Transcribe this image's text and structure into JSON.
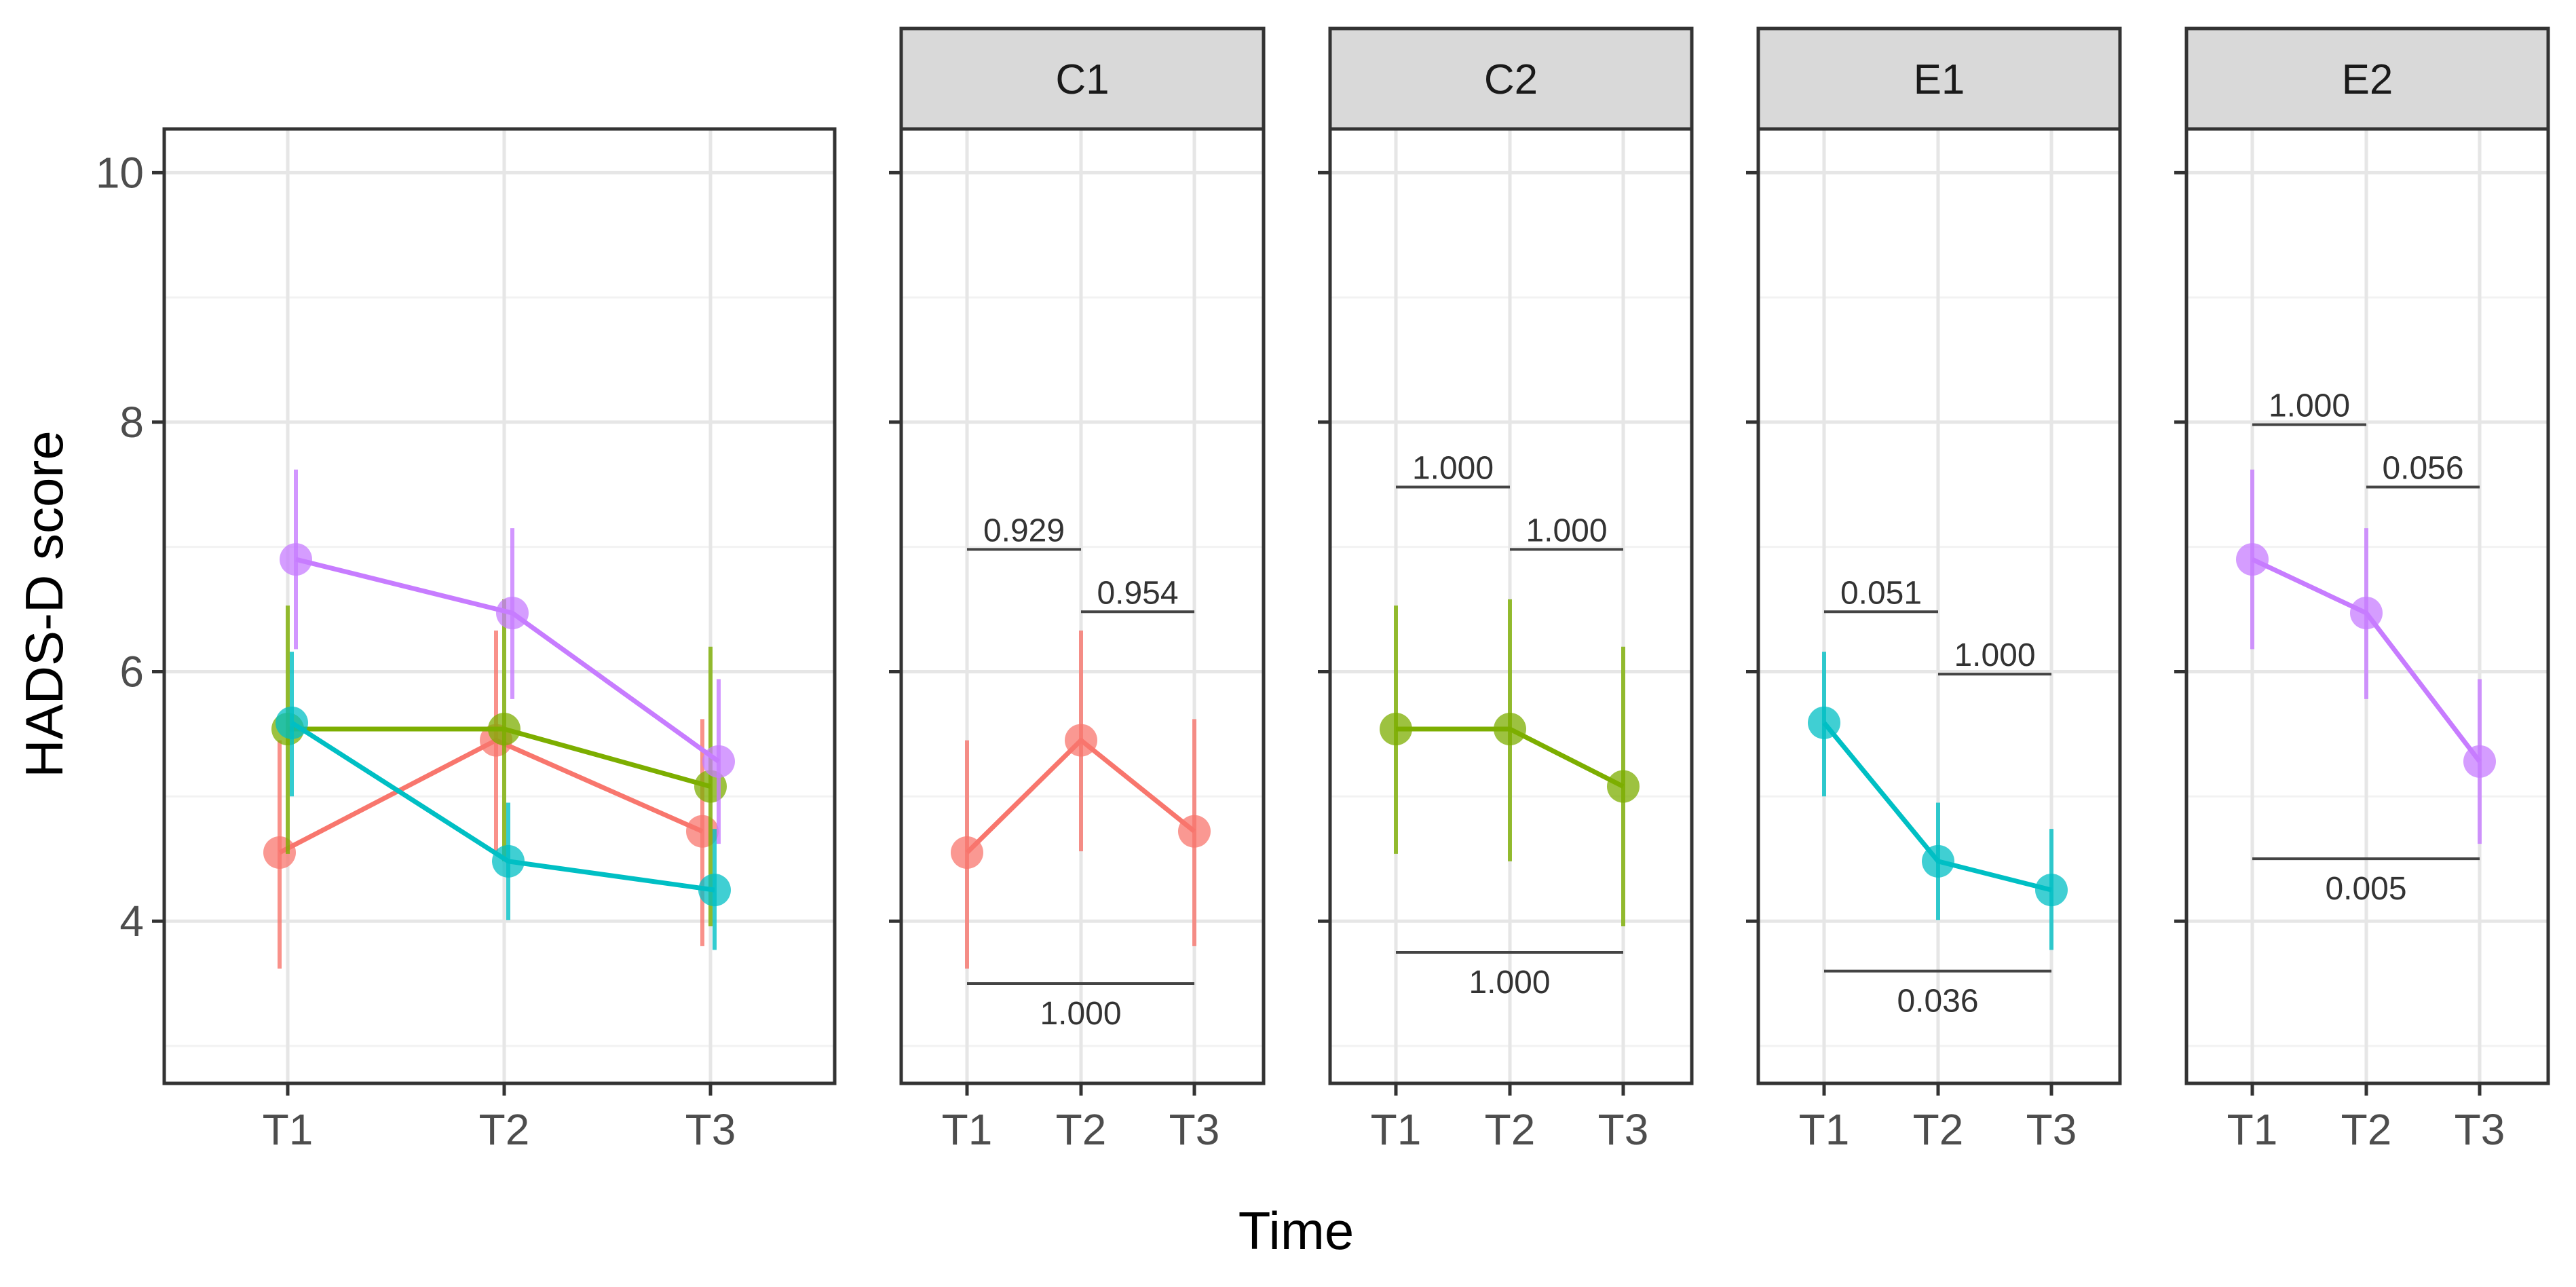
{
  "chart_data": {
    "type": "line",
    "ylabel": "HADS-D score",
    "xlabel": "Time",
    "ylim": [
      2.7,
      10.35
    ],
    "yticks": [
      4,
      6,
      8,
      10
    ],
    "x": [
      "T1",
      "T2",
      "T3"
    ],
    "series": [
      {
        "name": "C1",
        "color": "#F8766D",
        "values": [
          4.55,
          5.45,
          4.72
        ],
        "lower": [
          3.62,
          4.56,
          3.8
        ],
        "upper": [
          5.45,
          6.33,
          5.62
        ]
      },
      {
        "name": "C2",
        "color": "#7CAE00",
        "values": [
          5.54,
          5.54,
          5.08
        ],
        "lower": [
          4.54,
          4.48,
          3.96
        ],
        "upper": [
          6.53,
          6.58,
          6.2
        ]
      },
      {
        "name": "E1",
        "color": "#00BFC4",
        "values": [
          5.59,
          4.48,
          4.25
        ],
        "lower": [
          5.0,
          4.01,
          3.77
        ],
        "upper": [
          6.16,
          4.95,
          4.74
        ]
      },
      {
        "name": "E2",
        "color": "#C77CFF",
        "values": [
          6.9,
          6.47,
          5.28
        ],
        "lower": [
          6.18,
          5.78,
          4.62
        ],
        "upper": [
          7.62,
          7.15,
          5.94
        ]
      }
    ],
    "comparisons": {
      "C1": [
        {
          "from": "T1",
          "to": "T2",
          "label": "0.929",
          "y": 6.98,
          "side": "above"
        },
        {
          "from": "T2",
          "to": "T3",
          "label": "0.954",
          "y": 6.48,
          "side": "above"
        },
        {
          "from": "T1",
          "to": "T3",
          "label": "1.000",
          "y": 3.5,
          "side": "below"
        }
      ],
      "C2": [
        {
          "from": "T1",
          "to": "T2",
          "label": "1.000",
          "y": 7.48,
          "side": "above"
        },
        {
          "from": "T2",
          "to": "T3",
          "label": "1.000",
          "y": 6.98,
          "side": "above"
        },
        {
          "from": "T1",
          "to": "T3",
          "label": "1.000",
          "y": 3.75,
          "side": "below"
        }
      ],
      "E1": [
        {
          "from": "T1",
          "to": "T2",
          "label": "0.051",
          "y": 6.48,
          "side": "above"
        },
        {
          "from": "T2",
          "to": "T3",
          "label": "1.000",
          "y": 5.98,
          "side": "above"
        },
        {
          "from": "T1",
          "to": "T3",
          "label": "0.036",
          "y": 3.6,
          "side": "below"
        }
      ],
      "E2": [
        {
          "from": "T1",
          "to": "T2",
          "label": "1.000",
          "y": 7.98,
          "side": "above"
        },
        {
          "from": "T2",
          "to": "T3",
          "label": "0.056",
          "y": 7.48,
          "side": "above"
        },
        {
          "from": "T1",
          "to": "T3",
          "label": "0.005",
          "y": 4.5,
          "side": "below"
        }
      ]
    }
  }
}
